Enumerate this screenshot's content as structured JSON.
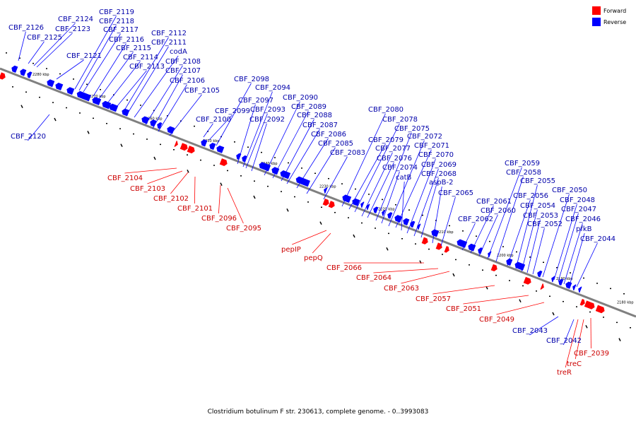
{
  "legend": {
    "forward_label": "Forward",
    "reverse_label": "Reverse",
    "forward_color": "#ff0000",
    "reverse_color": "#0000ff"
  },
  "caption": "Clostridium botulinum F str. 230613, complete genome. - 0..3993083",
  "colors": {
    "backbone": "#808080",
    "forward_label": "#cc0000",
    "reverse_label": "#0000aa"
  },
  "ticks": [
    "2280 kbp",
    "2270 kbp",
    "2260 kbp",
    "2250 kbp",
    "2240 kbp",
    "2230 kbp",
    "2220 kbp",
    "2210 kbp",
    "2200 kbp",
    "2190 kbp",
    "2180 kbp"
  ],
  "reverse_labels": [
    "CBF_2126",
    "CBF_2125",
    "CBF_2124",
    "CBF_2123",
    "CBF_2121",
    "CBF_2120",
    "CBF_2119",
    "CBF_2118",
    "CBF_2117",
    "CBF_2116",
    "CBF_2115",
    "CBF_2114",
    "CBF_2113",
    "CBF_2112",
    "CBF_2111",
    "codA",
    "CBF_2108",
    "CBF_2107",
    "CBF_2106",
    "CBF_2105",
    "CBF_2100",
    "CBF_2099",
    "CBF_2098",
    "CBF_2097",
    "CBF_2094",
    "CBF_2093",
    "CBF_2092",
    "CBF_2090",
    "CBF_2089",
    "CBF_2088",
    "CBF_2087",
    "CBF_2086",
    "CBF_2085",
    "CBF_2083",
    "CBF_2080",
    "CBF_2079",
    "CBF_2078",
    "CBF_2077",
    "CBF_2076",
    "CBF_2075",
    "CBF_2074",
    "CBF_2072",
    "CBF_2071",
    "catB",
    "CBF_2070",
    "CBF_2069",
    "CBF_2068",
    "aspB-2",
    "CBF_2065",
    "CBF_2062",
    "CBF_2061",
    "CBF_2060",
    "CBF_2059",
    "CBF_2058",
    "CBF_2056",
    "CBF_2055",
    "CBF_2054",
    "CBF_2053",
    "CBF_2052",
    "CBF_2050",
    "CBF_2048",
    "CBF_2047",
    "CBF_2046",
    "pfkB",
    "CBF_2044",
    "CBF_2043",
    "CBF_2042"
  ],
  "forward_labels": [
    "CBF_2104",
    "CBF_2103",
    "CBF_2102",
    "CBF_2101",
    "CBF_2096",
    "CBF_2095",
    "pepIP",
    "pepQ",
    "CBF_2066",
    "CBF_2064",
    "CBF_2063",
    "CBF_2057",
    "CBF_2051",
    "CBF_2049",
    "CBF_2039",
    "treC",
    "treR"
  ]
}
